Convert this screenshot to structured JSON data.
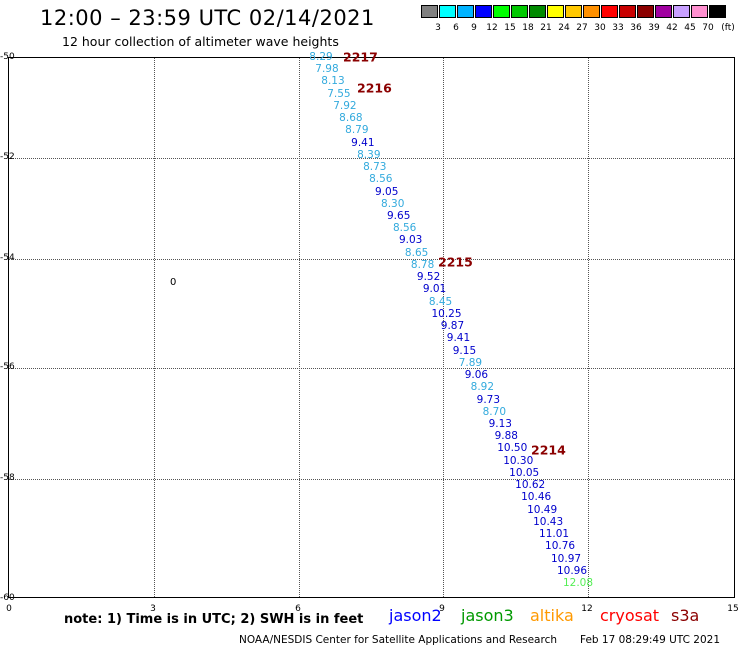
{
  "header": {
    "title": "12:00 – 23:59 UTC 02/14/2021",
    "subtitle": "12 hour collection of altimeter wave heights"
  },
  "color_scale": {
    "swatches": [
      {
        "label": "3",
        "color": "#808080"
      },
      {
        "label": "6",
        "color": "#00ffff"
      },
      {
        "label": "9",
        "color": "#00b3ff"
      },
      {
        "label": "12",
        "color": "#0000ff"
      },
      {
        "label": "15",
        "color": "#00ff00"
      },
      {
        "label": "18",
        "color": "#00c800"
      },
      {
        "label": "21",
        "color": "#008a00"
      },
      {
        "label": "24",
        "color": "#ffff00"
      },
      {
        "label": "27",
        "color": "#ffc800"
      },
      {
        "label": "30",
        "color": "#ff9000"
      },
      {
        "label": "33",
        "color": "#ff0000"
      },
      {
        "label": "36",
        "color": "#c80000"
      },
      {
        "label": "39",
        "color": "#8b0000"
      },
      {
        "label": "42",
        "color": "#a000a0"
      },
      {
        "label": "45",
        "color": "#c8a0ff"
      },
      {
        "label": "70",
        "color": "#ff90d0"
      },
      {
        "label": "(ft)",
        "color": "#000000"
      }
    ]
  },
  "map": {
    "lat_labels": [
      "-50",
      "-52",
      "-54",
      "-56",
      "-58",
      "-60"
    ],
    "lon_labels": [
      "0",
      "3",
      "6",
      "9",
      "12",
      "15"
    ],
    "contour_label": "0",
    "pass_labels": [
      "2217",
      "2216",
      "2215",
      "2214"
    ],
    "observations": [
      {
        "text": "8.29",
        "color": "#33aadd"
      },
      {
        "text": "7.98",
        "color": "#33aadd"
      },
      {
        "text": "8.13",
        "color": "#33aadd"
      },
      {
        "text": "7.55",
        "color": "#33aadd"
      },
      {
        "text": "7.92",
        "color": "#33aadd"
      },
      {
        "text": "8.68",
        "color": "#33aadd"
      },
      {
        "text": "8.79",
        "color": "#33aadd"
      },
      {
        "text": "9.41",
        "color": "#0000cc"
      },
      {
        "text": "8.39",
        "color": "#33aadd"
      },
      {
        "text": "8.73",
        "color": "#33aadd"
      },
      {
        "text": "8.56",
        "color": "#33aadd"
      },
      {
        "text": "9.05",
        "color": "#0000cc"
      },
      {
        "text": "8.30",
        "color": "#33aadd"
      },
      {
        "text": "9.65",
        "color": "#0000cc"
      },
      {
        "text": "8.56",
        "color": "#33aadd"
      },
      {
        "text": "9.03",
        "color": "#0000cc"
      },
      {
        "text": "8.65",
        "color": "#33aadd"
      },
      {
        "text": "8.78",
        "color": "#33aadd"
      },
      {
        "text": "9.52",
        "color": "#0000cc"
      },
      {
        "text": "9.01",
        "color": "#0000cc"
      },
      {
        "text": "8.45",
        "color": "#33aadd"
      },
      {
        "text": "10.25",
        "color": "#0000cc"
      },
      {
        "text": "9.87",
        "color": "#0000cc"
      },
      {
        "text": "9.41",
        "color": "#0000cc"
      },
      {
        "text": "9.15",
        "color": "#0000cc"
      },
      {
        "text": "7.89",
        "color": "#33aadd"
      },
      {
        "text": "9.06",
        "color": "#0000cc"
      },
      {
        "text": "8.92",
        "color": "#33aadd"
      },
      {
        "text": "9.73",
        "color": "#0000cc"
      },
      {
        "text": "8.70",
        "color": "#33aadd"
      },
      {
        "text": "9.13",
        "color": "#0000cc"
      },
      {
        "text": "9.88",
        "color": "#0000cc"
      },
      {
        "text": "10.50",
        "color": "#0000cc"
      },
      {
        "text": "10.30",
        "color": "#0000cc"
      },
      {
        "text": "10.05",
        "color": "#0000cc"
      },
      {
        "text": "10.62",
        "color": "#0000cc"
      },
      {
        "text": "10.46",
        "color": "#0000cc"
      },
      {
        "text": "10.49",
        "color": "#0000cc"
      },
      {
        "text": "10.43",
        "color": "#0000cc"
      },
      {
        "text": "11.01",
        "color": "#0000cc"
      },
      {
        "text": "10.76",
        "color": "#0000cc"
      },
      {
        "text": "10.97",
        "color": "#0000cc"
      },
      {
        "text": "10.96",
        "color": "#0000cc"
      },
      {
        "text": "12.08",
        "color": "#55ee55"
      }
    ]
  },
  "footer": {
    "note": "note:  1) Time is in UTC;  2) SWH is in feet",
    "missions": [
      {
        "name": "jason2",
        "color": "#0000ff"
      },
      {
        "name": "jason3",
        "color": "#009900"
      },
      {
        "name": "altika",
        "color": "#ff9900"
      },
      {
        "name": "cryosat",
        "color": "#ff0000"
      },
      {
        "name": "s3a",
        "color": "#8b0000"
      }
    ],
    "credit": "NOAA/NESDIS Center for Satellite Applications and Research",
    "timestamp": "Feb 17 08:29:49 UTC 2021"
  }
}
